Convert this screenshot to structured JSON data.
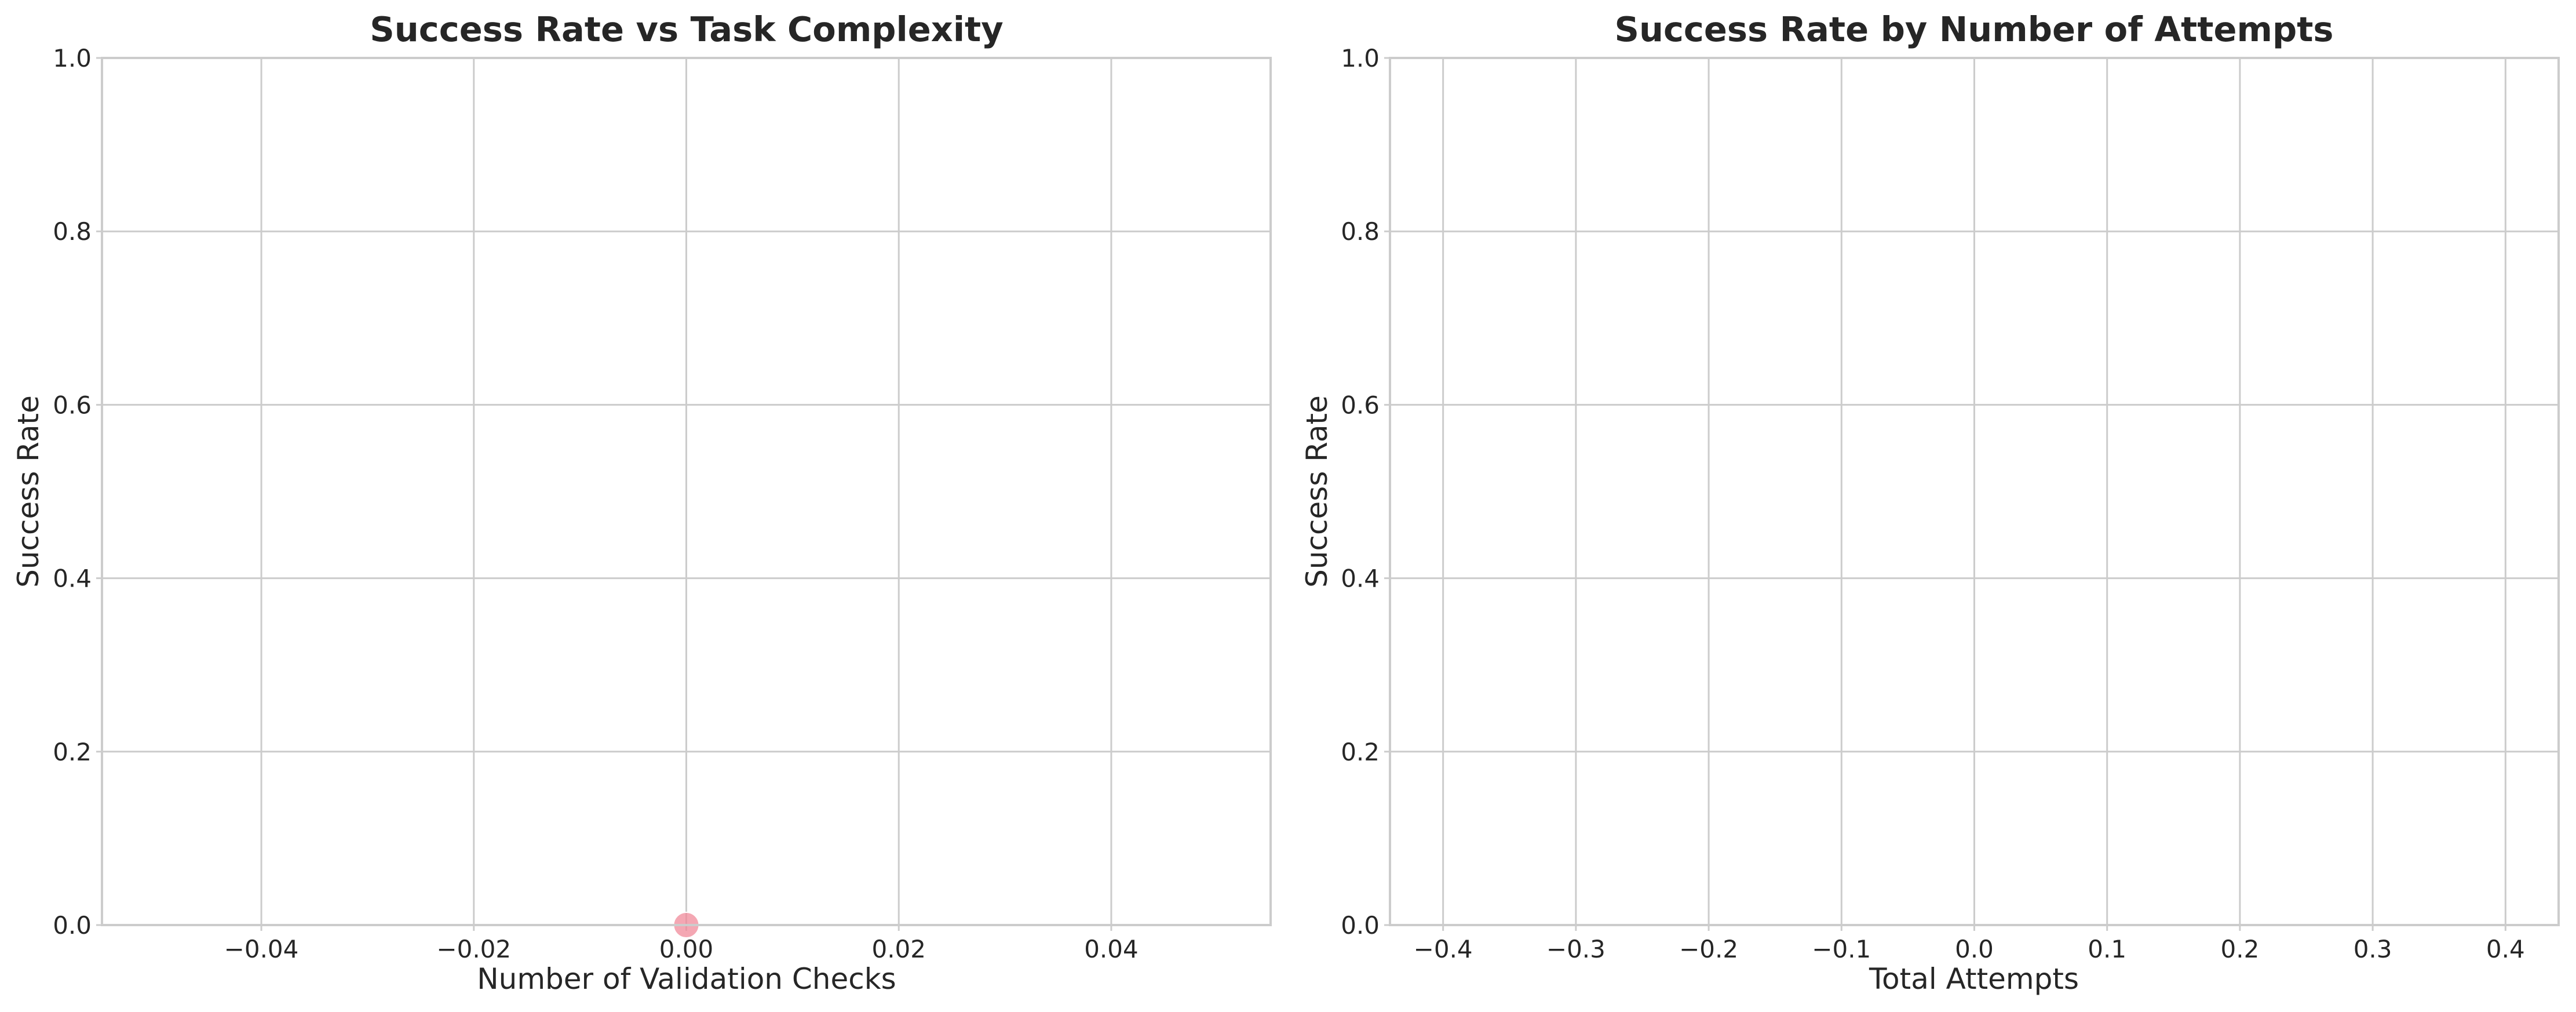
{
  "chart_data": [
    {
      "type": "scatter",
      "title": "Success Rate vs Task Complexity",
      "xlabel": "Number of Validation Checks",
      "ylabel": "Success Rate",
      "xlim": [
        -0.055,
        0.055
      ],
      "ylim": [
        0,
        1.0
      ],
      "xticks": [
        -0.04,
        -0.02,
        0.0,
        0.02,
        0.04
      ],
      "xtick_labels": [
        "−0.04",
        "−0.02",
        "0.00",
        "0.02",
        "0.04"
      ],
      "yticks": [
        0.0,
        0.2,
        0.4,
        0.6,
        0.8,
        1.0
      ],
      "ytick_labels": [
        "0.0",
        "0.2",
        "0.4",
        "0.6",
        "0.8",
        "1.0"
      ],
      "grid": true,
      "series": [
        {
          "points": [
            {
              "x": 0.0,
              "y": 0.0
            }
          ],
          "color": "#f08a9a"
        }
      ]
    },
    {
      "type": "bar",
      "title": "Success Rate by Number of Attempts",
      "xlabel": "Total Attempts",
      "ylabel": "Success Rate",
      "xlim": [
        -0.44,
        0.44
      ],
      "ylim": [
        0,
        1.0
      ],
      "xticks": [
        -0.4,
        -0.3,
        -0.2,
        -0.1,
        0.0,
        0.1,
        0.2,
        0.3,
        0.4
      ],
      "xtick_labels": [
        "−0.4",
        "−0.3",
        "−0.2",
        "−0.1",
        "0.0",
        "0.1",
        "0.2",
        "0.3",
        "0.4"
      ],
      "yticks": [
        0.0,
        0.2,
        0.4,
        0.6,
        0.8,
        1.0
      ],
      "ytick_labels": [
        "0.0",
        "0.2",
        "0.4",
        "0.6",
        "0.8",
        "1.0"
      ],
      "grid": true,
      "categories": [],
      "values": []
    }
  ]
}
